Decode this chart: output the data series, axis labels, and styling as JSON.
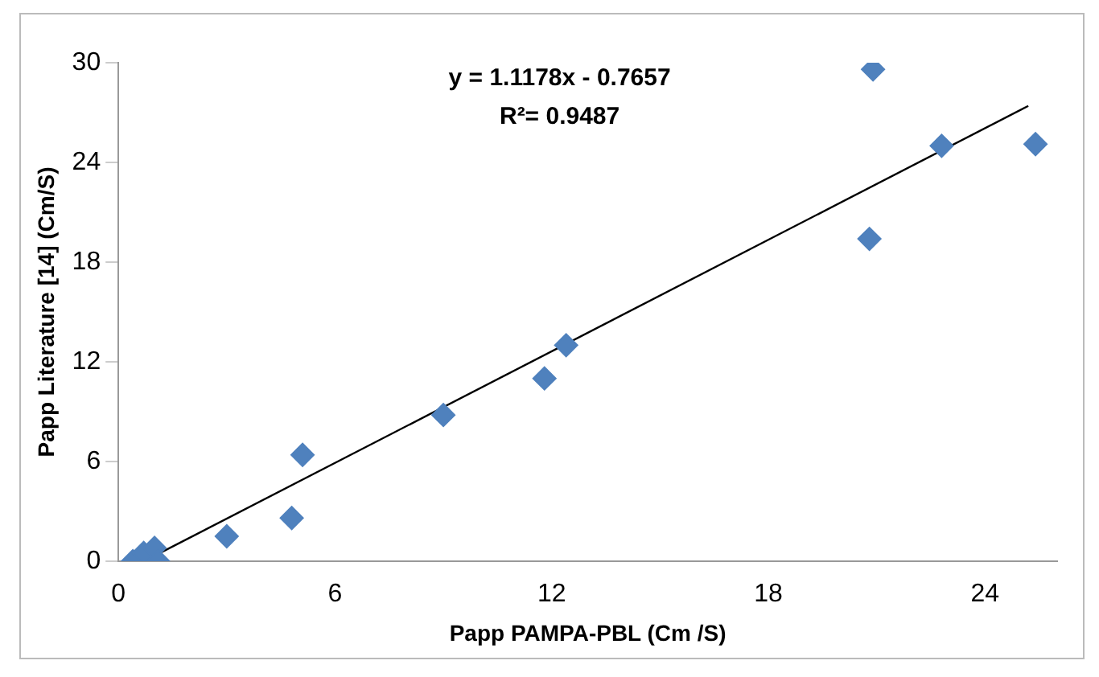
{
  "chart_data": {
    "type": "scatter",
    "xlabel": "Papp PAMPA-PBL (Cm /S)",
    "ylabel": "Papp Literature [14] (Cm/S)",
    "annotations": [
      "y = 1.1178x - 0.7657",
      "R²= 0.9487"
    ],
    "xlim": [
      0,
      26
    ],
    "xticks": [
      0,
      6,
      12,
      18,
      24
    ],
    "ylim": [
      0,
      30
    ],
    "yticks": [
      0,
      6,
      12,
      18,
      24,
      30
    ],
    "grid": false,
    "series": [
      {
        "color": "#4f81bd",
        "marker": "diamond",
        "x": [
          0.4,
          0.7,
          1.0,
          1.1,
          3.0,
          4.8,
          5.1,
          9.0,
          11.8,
          12.4,
          20.8,
          20.9,
          22.8,
          25.4
        ],
        "values": [
          0,
          0.5,
          0.8,
          0,
          1.5,
          2.6,
          6.4,
          8.8,
          11.0,
          13.0,
          19.4,
          29.6,
          25.0,
          25.1
        ]
      },
      {
        "type": "line",
        "color": "#000000",
        "marker": "none",
        "line_style": "solid",
        "x": [
          0.8,
          25.2
        ],
        "values": [
          0.1,
          27.4
        ]
      }
    ]
  }
}
